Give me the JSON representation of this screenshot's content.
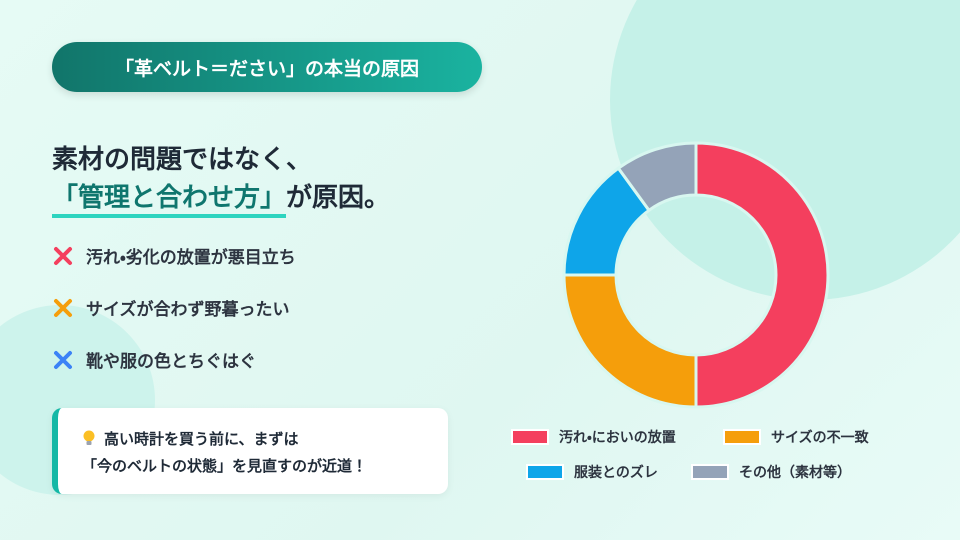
{
  "slide": {
    "badge": "「革ベルト＝ださい」の本当の原因",
    "heading_line1": "素材の問題ではなく、",
    "heading_emphasis": "「管理と合わせ方」",
    "heading_rest": "が原因。",
    "points": [
      "汚れ・劣化の放置が悪目立ち",
      "サイズが合わず野暮ったい",
      "靴や服の色とちぐはぐ"
    ],
    "tip_line1": "高い時計を買う前に、まずは",
    "tip_line2": "「今のベルトの状態」を見直すのが近道！"
  },
  "chart_data": {
    "type": "donut",
    "categories": [
      "汚れ・においの放置",
      "サイズの不一致",
      "服装とのズレ",
      "その他（素材等）"
    ],
    "values": [
      50,
      25,
      15,
      10
    ],
    "colors": [
      "#f43f5e",
      "#f59e0b",
      "#0ea5e9",
      "#94a3b8"
    ]
  }
}
